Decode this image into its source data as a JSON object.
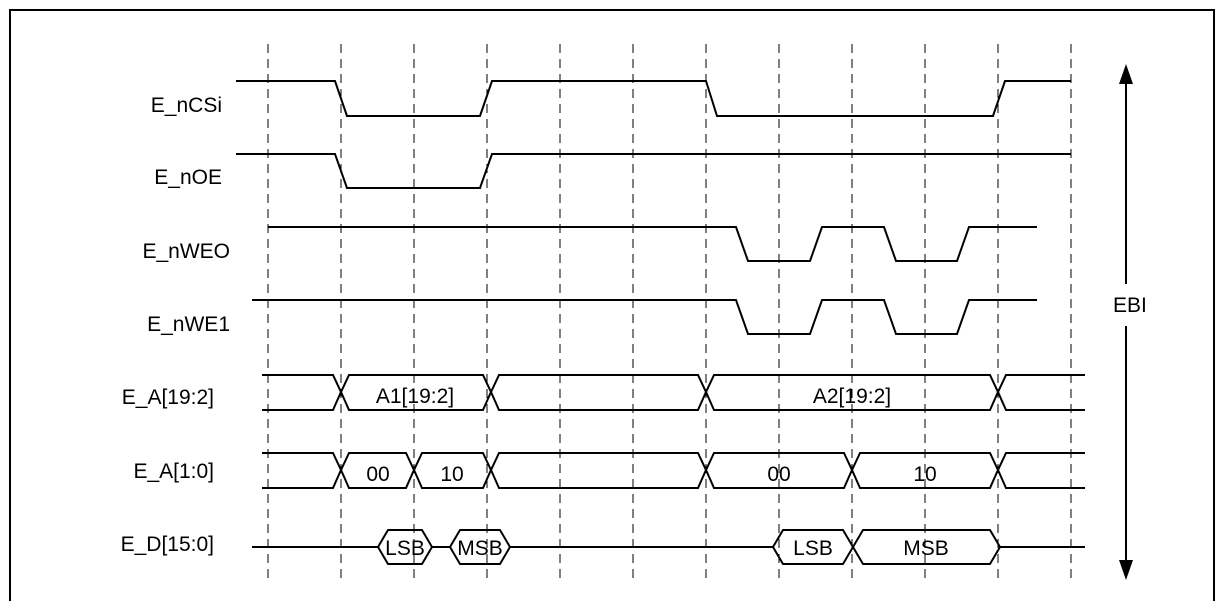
{
  "signals": [
    {
      "id": "ncs",
      "label": "E_nCSi"
    },
    {
      "id": "noe",
      "label": "E_nOE"
    },
    {
      "id": "nwe0",
      "label": "E_nWEO"
    },
    {
      "id": "nwe1",
      "label": "E_nWE1"
    },
    {
      "id": "a_high",
      "label": "E_A[19:2]"
    },
    {
      "id": "a_low",
      "label": "E_A[1:0]"
    },
    {
      "id": "data",
      "label": "E_D[15:0]"
    }
  ],
  "bus_values": {
    "a_high": [
      "A1[19:2]",
      "A2[19:2]"
    ],
    "a_low": [
      "00",
      "10",
      "00",
      "10"
    ],
    "data": [
      "LSB",
      "MSB",
      "LSB",
      "MSB"
    ]
  },
  "side_label": "EBI"
}
